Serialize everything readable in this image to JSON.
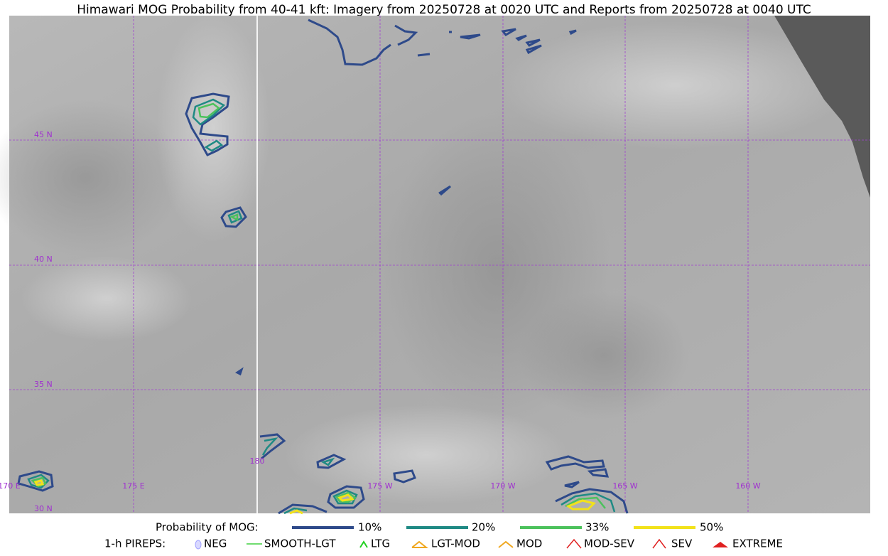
{
  "title": "Himawari MOG Probability from 40-41 kft: Imagery from 20250728 at 0020 UTC and Reports from 20250728 at 0040 UTC",
  "grid_labels": {
    "lat": [
      "45 N",
      "40 N",
      "35 N",
      "30 N"
    ],
    "lon": [
      "170 E",
      "175 E",
      "180",
      "175 W",
      "170 W",
      "165 W",
      "160 W"
    ]
  },
  "legend": {
    "probability": {
      "label": "Probability of MOG:",
      "items": [
        "10%",
        "20%",
        "33%",
        "50%"
      ]
    },
    "pireps": {
      "label": "1-h PIREPS:",
      "items": [
        "NEG",
        "SMOOTH-LGT",
        "LTG",
        "LGT-MOD",
        "MOD",
        "MOD-SEV",
        "SEV",
        "EXTREME"
      ]
    }
  }
}
